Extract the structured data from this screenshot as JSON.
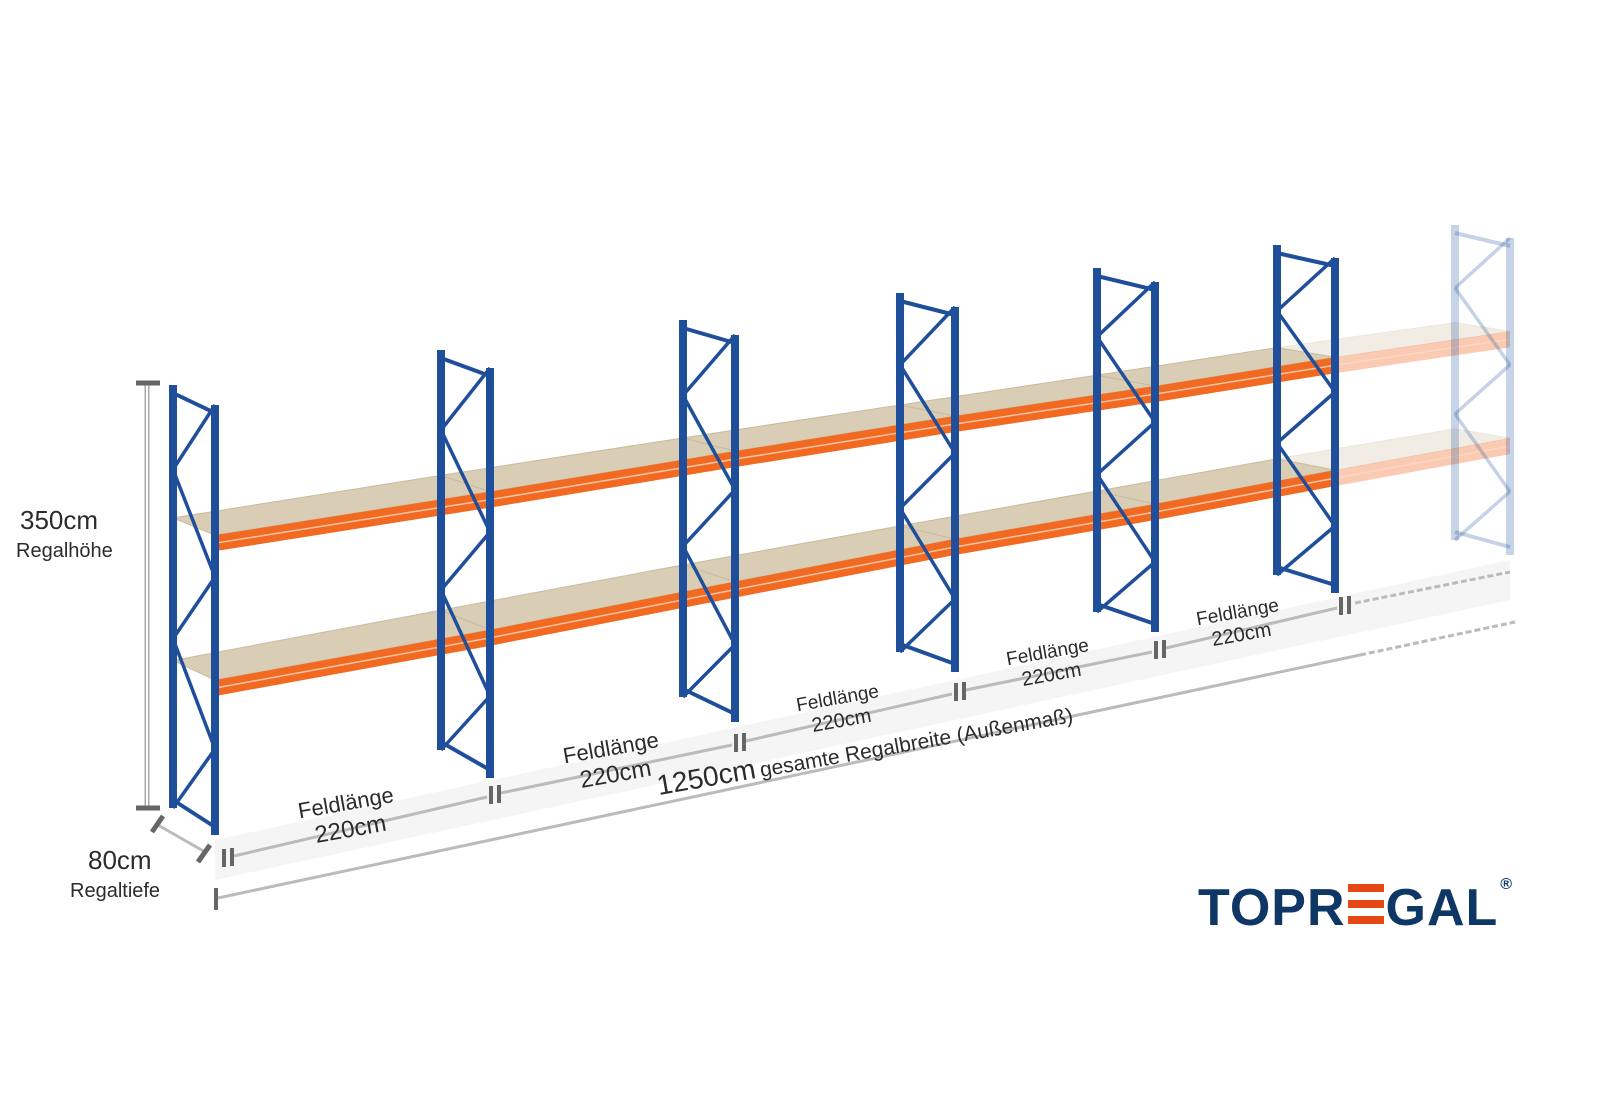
{
  "dimensions": {
    "height_value": "350cm",
    "height_label": "Regalhöhe",
    "depth_value": "80cm",
    "depth_label": "Regaltiefe",
    "total_value": "1250cm",
    "total_label": "gesamte Regalbreite (Außenmaß)",
    "fields": [
      {
        "label": "Feldlänge",
        "value": "220cm"
      },
      {
        "label": "Feldlänge",
        "value": "220cm"
      },
      {
        "label": "Feldlänge",
        "value": "220cm"
      },
      {
        "label": "Feldlänge",
        "value": "220cm"
      },
      {
        "label": "Feldlänge",
        "value": "220cm"
      }
    ]
  },
  "logo": {
    "text_a": "TOPR",
    "text_b": "GAL",
    "registered": "®"
  },
  "colors": {
    "frame": "#1f4f9a",
    "beam": "#f26a21",
    "deck": "#d9cdb5",
    "logo_blue": "#0e3766",
    "logo_orange": "#e54815"
  }
}
